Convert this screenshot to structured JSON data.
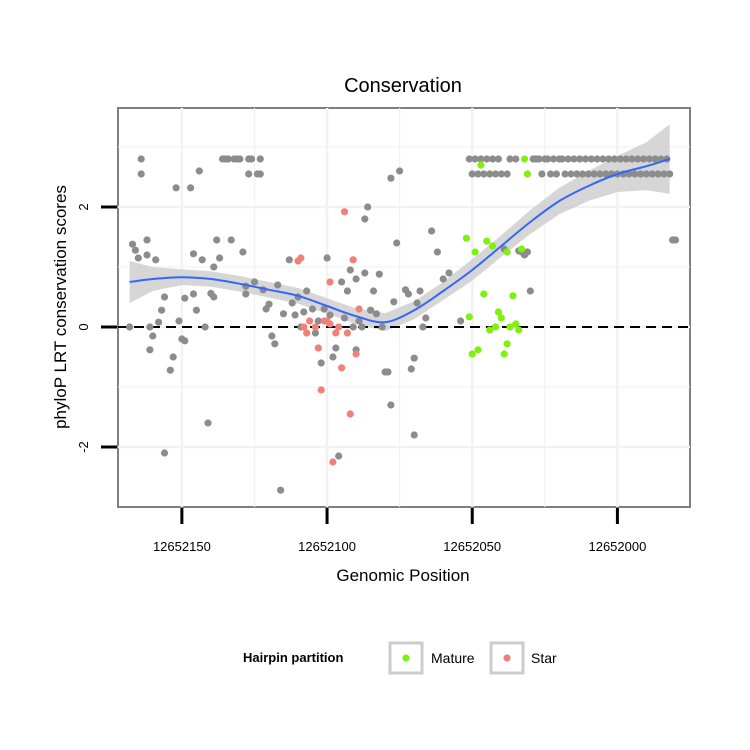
{
  "chart_data": {
    "type": "scatter",
    "title": "Conservation",
    "xlabel": "Genomic Position",
    "ylabel": "phyloP LRT conservation scores",
    "x_reversed": true,
    "xlim": [
      12652172,
      12651975
    ],
    "ylim": [
      -3.0,
      3.65
    ],
    "x_ticks": [
      12652150,
      12652100,
      12652050,
      12652000
    ],
    "x_tick_labels": [
      "12652150",
      "12652100",
      "12652050",
      "12652000"
    ],
    "y_ticks": [
      -2,
      0,
      2
    ],
    "y_tick_labels": [
      "-2",
      "0",
      "2"
    ],
    "reference_line": {
      "y": 0,
      "style": "dashed"
    },
    "grid": true,
    "legend": {
      "title": "Hairpin partition",
      "position": "bottom",
      "entries": [
        {
          "label": "Mature",
          "color": "#7ff00f"
        },
        {
          "label": "Star",
          "color": "#f08078"
        }
      ]
    },
    "colors": {
      "other": "#8c8c8c",
      "Mature": "#7ff00f",
      "Star": "#f08078",
      "smooth": "#3366ff",
      "band": "#cccccc"
    },
    "series": [
      {
        "name": "Other",
        "color": "#8c8c8c",
        "points": [
          [
            12652168,
            0.0
          ],
          [
            12652167,
            1.38
          ],
          [
            12652166,
            1.28
          ],
          [
            12652165,
            1.15
          ],
          [
            12652164,
            2.8
          ],
          [
            12652164,
            2.55
          ],
          [
            12652162,
            1.45
          ],
          [
            12652162,
            1.2
          ],
          [
            12652161,
            -0.38
          ],
          [
            12652161,
            0.0
          ],
          [
            12652160,
            -0.15
          ],
          [
            12652159,
            1.12
          ],
          [
            12652158,
            0.08
          ],
          [
            12652157,
            0.28
          ],
          [
            12652156,
            0.5
          ],
          [
            12652156,
            -2.1
          ],
          [
            12652154,
            -0.72
          ],
          [
            12652153,
            -0.5
          ],
          [
            12652152,
            2.32
          ],
          [
            12652151,
            0.1
          ],
          [
            12652150,
            -0.2
          ],
          [
            12652149,
            -0.23
          ],
          [
            12652149,
            0.48
          ],
          [
            12652147,
            2.32
          ],
          [
            12652146,
            1.22
          ],
          [
            12652146,
            0.55
          ],
          [
            12652145,
            0.28
          ],
          [
            12652144,
            2.6
          ],
          [
            12652143,
            1.12
          ],
          [
            12652142,
            0.0
          ],
          [
            12652141,
            -1.6
          ],
          [
            12652140,
            0.56
          ],
          [
            12652139,
            0.5
          ],
          [
            12652139,
            1.0
          ],
          [
            12652138,
            1.45
          ],
          [
            12652137,
            1.15
          ],
          [
            12652136,
            2.8
          ],
          [
            12652135,
            2.8
          ],
          [
            12652134,
            2.8
          ],
          [
            12652133,
            1.45
          ],
          [
            12652132,
            2.8
          ],
          [
            12652131,
            2.8
          ],
          [
            12652130,
            2.8
          ],
          [
            12652129,
            1.25
          ],
          [
            12652128,
            0.55
          ],
          [
            12652128,
            0.68
          ],
          [
            12652127,
            2.8
          ],
          [
            12652127,
            2.55
          ],
          [
            12652126,
            2.8
          ],
          [
            12652125,
            0.75
          ],
          [
            12652124,
            2.55
          ],
          [
            12652123,
            2.8
          ],
          [
            12652123,
            2.55
          ],
          [
            12652122,
            0.62
          ],
          [
            12652121,
            0.3
          ],
          [
            12652120,
            0.38
          ],
          [
            12652119,
            -0.15
          ],
          [
            12652118,
            -0.28
          ],
          [
            12652117,
            0.7
          ],
          [
            12652116,
            -2.72
          ],
          [
            12652115,
            0.22
          ],
          [
            12652113,
            1.12
          ],
          [
            12652112,
            0.4
          ],
          [
            12652111,
            0.2
          ],
          [
            12652110,
            0.5
          ],
          [
            12652109,
            0.0
          ],
          [
            12652108,
            0.25
          ],
          [
            12652107,
            0.6
          ],
          [
            12652105,
            0.3
          ],
          [
            12652104,
            -0.1
          ],
          [
            12652103,
            0.1
          ],
          [
            12652102,
            -0.6
          ],
          [
            12652101,
            0.3
          ],
          [
            12652100,
            1.15
          ],
          [
            12652099,
            0.2
          ],
          [
            12652098,
            -0.5
          ],
          [
            12652097,
            -0.35
          ],
          [
            12652096,
            -2.15
          ],
          [
            12652095,
            0.75
          ],
          [
            12652094,
            0.15
          ],
          [
            12652093,
            0.6
          ],
          [
            12652092,
            0.95
          ],
          [
            12652091,
            0.0
          ],
          [
            12652090,
            -0.38
          ],
          [
            12652090,
            0.8
          ],
          [
            12652089,
            0.1
          ],
          [
            12652088,
            0.0
          ],
          [
            12652087,
            1.8
          ],
          [
            12652087,
            0.9
          ],
          [
            12652086,
            2.0
          ],
          [
            12652085,
            0.28
          ],
          [
            12652084,
            0.6
          ],
          [
            12652083,
            0.22
          ],
          [
            12652082,
            0.88
          ],
          [
            12652081,
            0.0
          ],
          [
            12652080,
            -0.75
          ],
          [
            12652079,
            -0.75
          ],
          [
            12652078,
            -1.3
          ],
          [
            12652078,
            2.48
          ],
          [
            12652077,
            0.42
          ],
          [
            12652076,
            1.4
          ],
          [
            12652075,
            2.6
          ],
          [
            12652073,
            0.62
          ],
          [
            12652072,
            0.55
          ],
          [
            12652071,
            -0.7
          ],
          [
            12652070,
            -0.52
          ],
          [
            12652070,
            -1.8
          ],
          [
            12652069,
            0.4
          ],
          [
            12652068,
            0.6
          ],
          [
            12652067,
            0.0
          ],
          [
            12652066,
            0.15
          ],
          [
            12652064,
            1.6
          ],
          [
            12652062,
            1.25
          ],
          [
            12652060,
            0.8
          ],
          [
            12652058,
            0.9
          ],
          [
            12652054,
            0.1
          ],
          [
            12652051,
            2.8
          ],
          [
            12652050,
            2.55
          ],
          [
            12652049,
            2.8
          ],
          [
            12652048,
            2.55
          ],
          [
            12652047,
            2.8
          ],
          [
            12652046,
            2.55
          ],
          [
            12652045,
            2.8
          ],
          [
            12652044,
            2.55
          ],
          [
            12652043,
            2.8
          ],
          [
            12652042,
            2.55
          ],
          [
            12652041,
            2.8
          ],
          [
            12652040,
            2.55
          ],
          [
            12652039,
            1.3
          ],
          [
            12652038,
            2.55
          ],
          [
            12652037,
            2.8
          ],
          [
            12652035,
            2.8
          ],
          [
            12652034,
            1.27
          ],
          [
            12652033,
            1.25
          ],
          [
            12652032,
            1.2
          ],
          [
            12652031,
            1.25
          ],
          [
            12652030,
            0.6
          ],
          [
            12652029,
            2.8
          ],
          [
            12652028,
            2.8
          ],
          [
            12652027,
            2.8
          ],
          [
            12652026,
            2.55
          ],
          [
            12652025,
            2.8
          ],
          [
            12652024,
            2.8
          ],
          [
            12652023,
            2.55
          ],
          [
            12652022,
            2.8
          ],
          [
            12652021,
            2.55
          ],
          [
            12652020,
            2.8
          ],
          [
            12652019,
            2.8
          ],
          [
            12652018,
            2.55
          ],
          [
            12652017,
            2.8
          ],
          [
            12652016,
            2.55
          ],
          [
            12652015,
            2.8
          ],
          [
            12652014,
            2.55
          ],
          [
            12652013,
            2.8
          ],
          [
            12652012,
            2.55
          ],
          [
            12652011,
            2.8
          ],
          [
            12652010,
            2.55
          ],
          [
            12652009,
            2.8
          ],
          [
            12652008,
            2.55
          ],
          [
            12652007,
            2.8
          ],
          [
            12652006,
            2.55
          ],
          [
            12652005,
            2.8
          ],
          [
            12652004,
            2.55
          ],
          [
            12652003,
            2.8
          ],
          [
            12652002,
            2.55
          ],
          [
            12652001,
            2.8
          ],
          [
            12652000,
            2.55
          ],
          [
            12651999,
            2.8
          ],
          [
            12651998,
            2.55
          ],
          [
            12651997,
            2.8
          ],
          [
            12651996,
            2.55
          ],
          [
            12651995,
            2.8
          ],
          [
            12651994,
            2.55
          ],
          [
            12651993,
            2.8
          ],
          [
            12651992,
            2.55
          ],
          [
            12651991,
            2.8
          ],
          [
            12651990,
            2.55
          ],
          [
            12651989,
            2.8
          ],
          [
            12651988,
            2.55
          ],
          [
            12651987,
            2.8
          ],
          [
            12651986,
            2.55
          ],
          [
            12651985,
            2.8
          ],
          [
            12651984,
            2.55
          ],
          [
            12651983,
            2.8
          ],
          [
            12651982,
            2.55
          ],
          [
            12651981,
            1.45
          ],
          [
            12651980,
            1.45
          ]
        ]
      },
      {
        "name": "Star",
        "color": "#f08078",
        "points": [
          [
            12652110,
            1.1
          ],
          [
            12652109,
            1.15
          ],
          [
            12652108,
            0.0
          ],
          [
            12652107,
            -0.1
          ],
          [
            12652106,
            0.1
          ],
          [
            12652104,
            0.0
          ],
          [
            12652103,
            -0.35
          ],
          [
            12652102,
            -1.05
          ],
          [
            12652101,
            0.1
          ],
          [
            12652100,
            0.1
          ],
          [
            12652099,
            0.05
          ],
          [
            12652099,
            0.75
          ],
          [
            12652098,
            -2.25
          ],
          [
            12652097,
            -0.1
          ],
          [
            12652096,
            0.0
          ],
          [
            12652095,
            -0.68
          ],
          [
            12652094,
            1.92
          ],
          [
            12652093,
            -0.1
          ],
          [
            12652092,
            -1.45
          ],
          [
            12652091,
            1.12
          ],
          [
            12652090,
            -0.45
          ],
          [
            12652089,
            0.3
          ]
        ]
      },
      {
        "name": "Mature",
        "color": "#7ff00f",
        "points": [
          [
            12652052,
            1.48
          ],
          [
            12652051,
            0.17
          ],
          [
            12652050,
            -0.45
          ],
          [
            12652049,
            1.25
          ],
          [
            12652048,
            -0.38
          ],
          [
            12652047,
            2.7
          ],
          [
            12652046,
            0.55
          ],
          [
            12652045,
            1.43
          ],
          [
            12652044,
            -0.05
          ],
          [
            12652043,
            1.35
          ],
          [
            12652042,
            0.0
          ],
          [
            12652041,
            0.25
          ],
          [
            12652040,
            0.15
          ],
          [
            12652039,
            -0.45
          ],
          [
            12652038,
            -0.28
          ],
          [
            12652038,
            1.25
          ],
          [
            12652037,
            0.0
          ],
          [
            12652036,
            0.52
          ],
          [
            12652035,
            0.05
          ],
          [
            12652034,
            -0.05
          ],
          [
            12652033,
            1.3
          ],
          [
            12652032,
            2.8
          ],
          [
            12652031,
            2.55
          ]
        ]
      }
    ],
    "smooth": {
      "x": [
        12652168,
        12652160,
        12652150,
        12652140,
        12652130,
        12652120,
        12652110,
        12652100,
        12652090,
        12652080,
        12652070,
        12652060,
        12652050,
        12652040,
        12652030,
        12652020,
        12652010,
        12652000,
        12651990,
        12651982
      ],
      "y": [
        0.75,
        0.8,
        0.83,
        0.8,
        0.72,
        0.62,
        0.52,
        0.35,
        0.18,
        0.08,
        0.28,
        0.6,
        0.95,
        1.35,
        1.75,
        2.1,
        2.35,
        2.55,
        2.68,
        2.8
      ],
      "se": [
        0.35,
        0.2,
        0.13,
        0.13,
        0.13,
        0.13,
        0.13,
        0.13,
        0.13,
        0.15,
        0.15,
        0.15,
        0.18,
        0.18,
        0.2,
        0.22,
        0.25,
        0.3,
        0.4,
        0.58
      ]
    }
  }
}
